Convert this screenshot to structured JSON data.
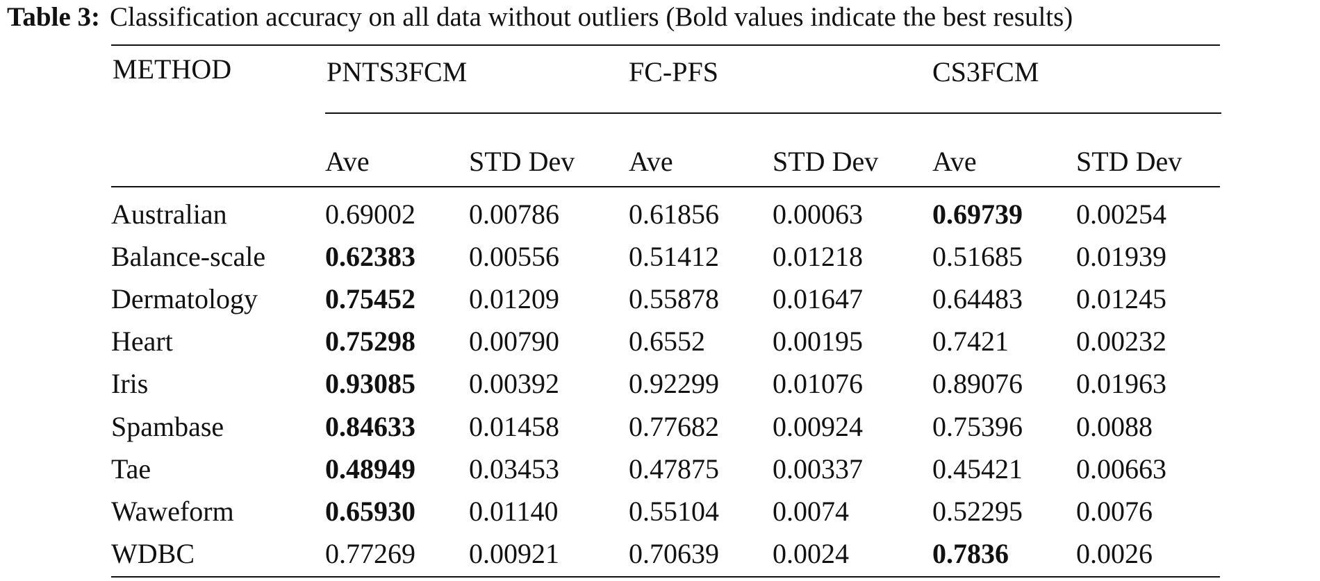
{
  "caption": {
    "label": "Table 3:",
    "text": "Classification accuracy on all data without outliers (Bold values indicate the best results)"
  },
  "header": {
    "method": "METHOD",
    "groups": [
      "PNTS3FCM",
      "FC-PFS",
      "CS3FCM"
    ],
    "subcolumns": [
      "Ave",
      "STD Dev",
      "Ave",
      "STD Dev",
      "Ave",
      "STD Dev"
    ]
  },
  "rows": [
    {
      "name": "Australian",
      "values": [
        "0.69002",
        "0.00786",
        "0.61856",
        "0.00063",
        "0.69739",
        "0.00254"
      ],
      "best": [
        4
      ]
    },
    {
      "name": "Balance-scale",
      "values": [
        "0.62383",
        "0.00556",
        "0.51412",
        "0.01218",
        "0.51685",
        "0.01939"
      ],
      "best": [
        0
      ]
    },
    {
      "name": "Dermatology",
      "values": [
        "0.75452",
        "0.01209",
        "0.55878",
        "0.01647",
        "0.64483",
        "0.01245"
      ],
      "best": [
        0
      ]
    },
    {
      "name": "Heart",
      "values": [
        "0.75298",
        "0.00790",
        "0.6552",
        "0.00195",
        "0.7421",
        "0.00232"
      ],
      "best": [
        0
      ]
    },
    {
      "name": "Iris",
      "values": [
        "0.93085",
        "0.00392",
        "0.92299",
        "0.01076",
        "0.89076",
        "0.01963"
      ],
      "best": [
        0
      ]
    },
    {
      "name": "Spambase",
      "values": [
        "0.84633",
        "0.01458",
        "0.77682",
        "0.00924",
        "0.75396",
        "0.0088"
      ],
      "best": [
        0
      ]
    },
    {
      "name": "Tae",
      "values": [
        "0.48949",
        "0.03453",
        "0.47875",
        "0.00337",
        "0.45421",
        "0.00663"
      ],
      "best": [
        0
      ]
    },
    {
      "name": "Waweform",
      "values": [
        "0.65930",
        "0.01140",
        "0.55104",
        "0.0074",
        "0.52295",
        "0.0076"
      ],
      "best": [
        0
      ]
    },
    {
      "name": "WDBC",
      "values": [
        "0.77269",
        "0.00921",
        "0.70639",
        "0.0024",
        "0.7836",
        "0.0026"
      ],
      "best": [
        4
      ]
    }
  ]
}
